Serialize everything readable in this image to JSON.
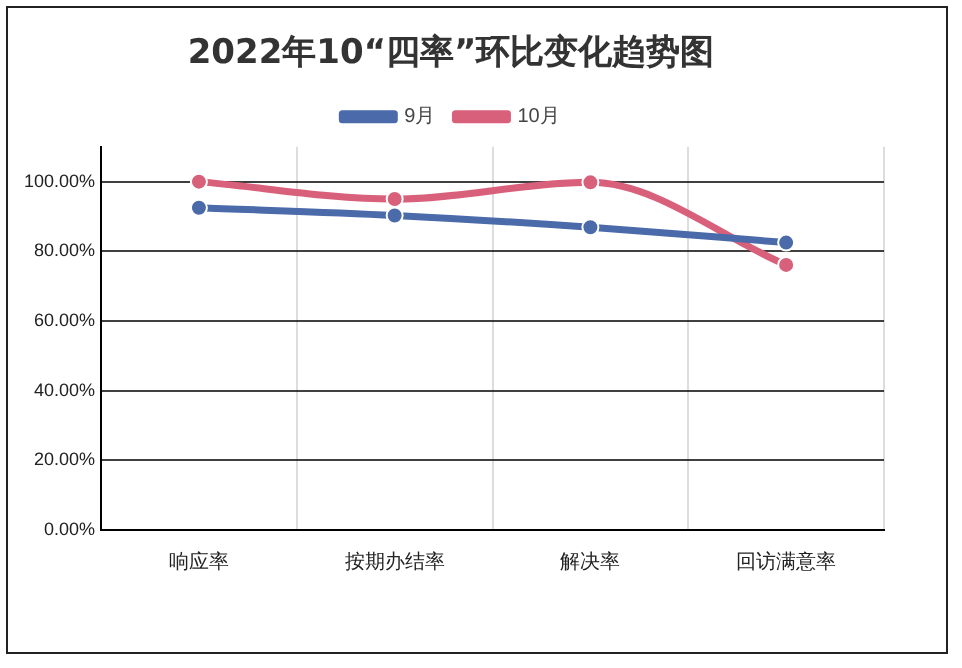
{
  "chart_data": {
    "type": "line",
    "title": "2022年10“四率”环比变化趋势图",
    "categories": [
      "响应率",
      "按期办结率",
      "解决率",
      "回访满意率"
    ],
    "series": [
      {
        "name": "9月",
        "color": "#4a6aaa",
        "values": [
          92.5,
          90.3,
          86.9,
          82.5
        ]
      },
      {
        "name": "10月",
        "color": "#d9607a",
        "values": [
          100,
          95,
          99.8,
          76.1
        ]
      }
    ],
    "ylim": [
      0,
      110
    ],
    "yticks": [
      {
        "value": 0,
        "label": "0.00%"
      },
      {
        "value": 20,
        "label": "20.00%"
      },
      {
        "value": 40,
        "label": "40.00%"
      },
      {
        "value": 60,
        "label": "60.00%"
      },
      {
        "value": 80,
        "label": "80.00%"
      },
      {
        "value": 100,
        "label": "100.00%"
      }
    ],
    "grid": true,
    "legend": "top",
    "marker": "circle",
    "line_style": "solid"
  }
}
